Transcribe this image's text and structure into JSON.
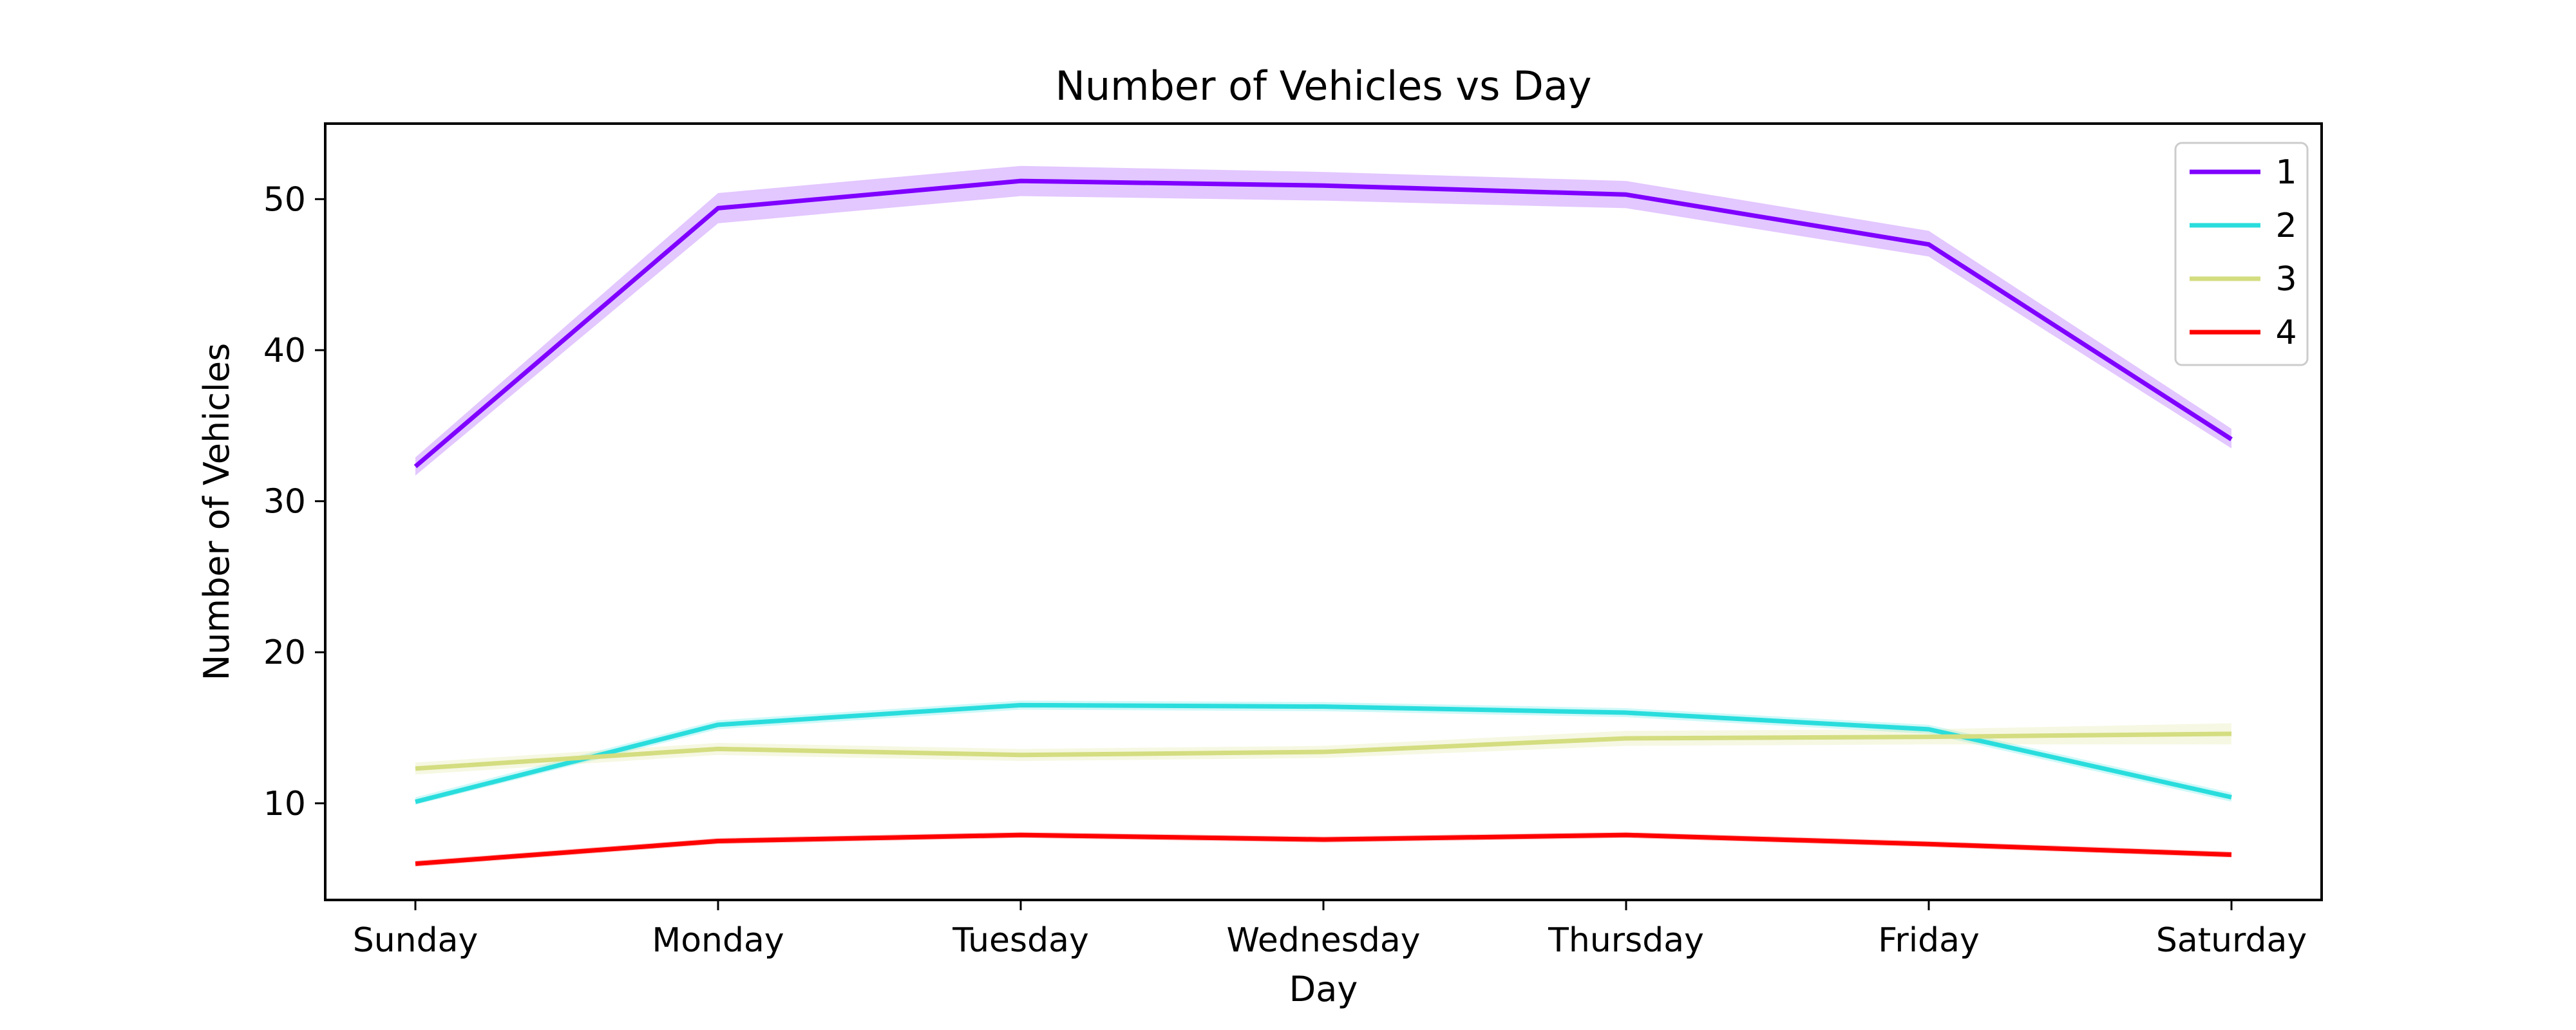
{
  "chart_data": {
    "type": "line",
    "title": "Number of Vehicles vs Day",
    "xlabel": "Day",
    "ylabel": "Number of Vehicles",
    "categories": [
      "Sunday",
      "Monday",
      "Tuesday",
      "Wednesday",
      "Thursday",
      "Friday",
      "Saturday"
    ],
    "ylim": [
      3.6,
      55.0
    ],
    "yticks": [
      10,
      20,
      30,
      40,
      50
    ],
    "grid": false,
    "legend_position": "top-right",
    "series": [
      {
        "name": "1",
        "color": "#7f00ff",
        "values": [
          32.3,
          49.4,
          51.2,
          50.9,
          50.3,
          47.0,
          34.1
        ],
        "lower": [
          31.7,
          48.4,
          50.2,
          49.9,
          49.4,
          46.2,
          33.5
        ],
        "upper": [
          32.9,
          50.4,
          52.2,
          51.8,
          51.2,
          47.9,
          34.8
        ]
      },
      {
        "name": "2",
        "color": "#2adddd",
        "values": [
          10.1,
          15.2,
          16.5,
          16.4,
          16.0,
          14.9,
          10.4
        ],
        "lower": [
          9.9,
          14.9,
          16.2,
          16.1,
          15.7,
          14.6,
          10.1
        ],
        "upper": [
          10.4,
          15.5,
          16.8,
          16.7,
          16.3,
          15.2,
          10.7
        ]
      },
      {
        "name": "3",
        "color": "#d4dd80",
        "values": [
          12.3,
          13.6,
          13.2,
          13.4,
          14.3,
          14.4,
          14.6
        ],
        "lower": [
          11.9,
          13.2,
          12.8,
          13.0,
          13.8,
          13.9,
          13.9
        ],
        "upper": [
          12.7,
          14.0,
          13.6,
          13.8,
          14.8,
          14.9,
          15.3
        ]
      },
      {
        "name": "4",
        "color": "#ff0000",
        "values": [
          6.0,
          7.5,
          7.9,
          7.6,
          7.9,
          7.3,
          6.6
        ],
        "lower": [
          5.8,
          7.3,
          7.7,
          7.4,
          7.7,
          7.1,
          6.4
        ],
        "upper": [
          6.2,
          7.7,
          8.1,
          7.8,
          8.1,
          7.5,
          6.8
        ]
      }
    ]
  }
}
